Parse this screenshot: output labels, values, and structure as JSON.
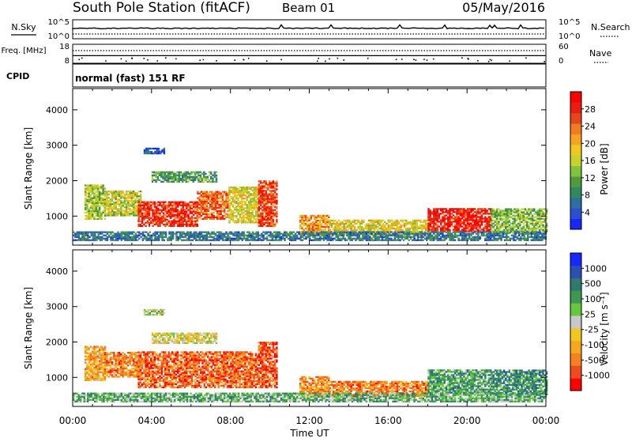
{
  "header": {
    "station": "South Pole Station (fitACF)",
    "beam": "Beam 01",
    "date": "05/May/2016"
  },
  "chart_data": [
    {
      "type": "line",
      "panel": "noise",
      "left_label": "N.Sky",
      "right_label": "N.Search",
      "left_ticks": [
        "10^5",
        "10^0"
      ],
      "right_ticks": [
        "10^5",
        "10^0"
      ],
      "series": [
        {
          "name": "N.Sky",
          "style": "solid",
          "level": 0.55
        },
        {
          "name": "N.Search",
          "style": "dotted",
          "level": 0.25
        }
      ]
    },
    {
      "type": "scatter",
      "panel": "freq-nave",
      "left_label": "Freq. [MHz]",
      "right_label": "Nave",
      "left_ticks": [
        18,
        8
      ],
      "right_ticks": [
        60,
        0
      ],
      "series": [
        {
          "name": "Freq.",
          "style": "solid",
          "value": 12
        },
        {
          "name": "Nave",
          "style": "dotted",
          "value": 40
        }
      ]
    },
    {
      "type": "table",
      "panel": "cpid",
      "label": "CPID",
      "text": "normal (fast) 151 RF"
    },
    {
      "type": "heatmap",
      "panel": "power",
      "ylabel": "Slant Range [km]",
      "yticks": [
        1000,
        2000,
        3000,
        4000
      ],
      "ylim": [
        180,
        4600
      ],
      "xlim": [
        0,
        24
      ],
      "colorbar": {
        "label": "Power [dB]",
        "ticks": [
          "4",
          "8",
          "12",
          "16",
          "20",
          "24",
          "28"
        ],
        "colors": [
          "#1428ff",
          "#2a4fd0",
          "#2e6ea0",
          "#2f8a62",
          "#4f9a3c",
          "#7fc43a",
          "#c8d22a",
          "#f0c81e",
          "#f5a320",
          "#f07c1e",
          "#e8461a",
          "#e81e10",
          "#ff0000"
        ]
      },
      "regions": [
        {
          "t0": 0.6,
          "t1": 1.6,
          "r0": 900,
          "r1": 1850,
          "level": 0.45
        },
        {
          "t0": 1.6,
          "t1": 3.4,
          "r0": 1000,
          "r1": 1700,
          "level": 0.5
        },
        {
          "t0": 3.3,
          "t1": 6.3,
          "r0": 700,
          "r1": 1400,
          "level": 0.9
        },
        {
          "t0": 6.3,
          "t1": 7.9,
          "r0": 900,
          "r1": 1700,
          "level": 0.8
        },
        {
          "t0": 7.9,
          "t1": 9.4,
          "r0": 800,
          "r1": 1800,
          "level": 0.55
        },
        {
          "t0": 9.4,
          "t1": 10.3,
          "r0": 700,
          "r1": 2000,
          "level": 0.85
        },
        {
          "t0": 4.0,
          "t1": 7.3,
          "r0": 1950,
          "r1": 2250,
          "level": 0.3
        },
        {
          "t0": 3.6,
          "t1": 4.6,
          "r0": 2750,
          "r1": 2900,
          "level": 0.1
        },
        {
          "t0": 11.5,
          "t1": 13.0,
          "r0": 450,
          "r1": 1000,
          "level": 0.7
        },
        {
          "t0": 13.0,
          "t1": 18.0,
          "r0": 450,
          "r1": 900,
          "level": 0.55
        },
        {
          "t0": 18.0,
          "t1": 21.2,
          "r0": 550,
          "r1": 1200,
          "level": 0.95
        },
        {
          "t0": 21.2,
          "t1": 24.0,
          "r0": 500,
          "r1": 1200,
          "level": 0.4
        },
        {
          "t0": 0.0,
          "t1": 24.0,
          "r0": 300,
          "r1": 560,
          "level": 0.2
        }
      ]
    },
    {
      "type": "heatmap",
      "panel": "velocity",
      "ylabel": "Slant Range [km]",
      "yticks": [
        1000,
        2000,
        3000,
        4000
      ],
      "ylim": [
        180,
        4600
      ],
      "xlim": [
        0,
        24
      ],
      "xticks": [
        "00:00",
        "04:00",
        "08:00",
        "12:00",
        "16:00",
        "20:00",
        "00:00"
      ],
      "xlabel": "Time UT",
      "colorbar": {
        "label": "Velocity [m s⁻¹]",
        "ticks": [
          "-1000",
          "-500",
          "-100",
          "-25",
          "25",
          "100",
          "500",
          "1000"
        ],
        "colors": [
          "#ff0000",
          "#f04b1e",
          "#f5821e",
          "#f5a81e",
          "#f0c81e",
          "#c8c8c8",
          "#64c83c",
          "#3c9a50",
          "#2e7a70",
          "#2a50b4",
          "#1428ff"
        ]
      },
      "regions": [
        {
          "t0": 0.6,
          "t1": 1.6,
          "r0": 900,
          "r1": 1850,
          "level": 0.3
        },
        {
          "t0": 1.6,
          "t1": 3.4,
          "r0": 1000,
          "r1": 1700,
          "level": 0.2
        },
        {
          "t0": 3.3,
          "t1": 9.4,
          "r0": 700,
          "r1": 1700,
          "level": 0.15
        },
        {
          "t0": 9.4,
          "t1": 10.3,
          "r0": 700,
          "r1": 2000,
          "level": 0.1
        },
        {
          "t0": 4.0,
          "t1": 7.3,
          "r0": 1950,
          "r1": 2250,
          "level": 0.45
        },
        {
          "t0": 3.6,
          "t1": 4.6,
          "r0": 2750,
          "r1": 2900,
          "level": 0.5
        },
        {
          "t0": 11.5,
          "t1": 13.0,
          "r0": 450,
          "r1": 1000,
          "level": 0.25
        },
        {
          "t0": 13.0,
          "t1": 18.0,
          "r0": 450,
          "r1": 900,
          "level": 0.2
        },
        {
          "t0": 18.0,
          "t1": 21.2,
          "r0": 550,
          "r1": 1200,
          "level": 0.7
        },
        {
          "t0": 21.2,
          "t1": 24.0,
          "r0": 500,
          "r1": 1200,
          "level": 0.75
        },
        {
          "t0": 0.0,
          "t1": 24.0,
          "r0": 300,
          "r1": 560,
          "level": 0.65
        }
      ]
    }
  ]
}
